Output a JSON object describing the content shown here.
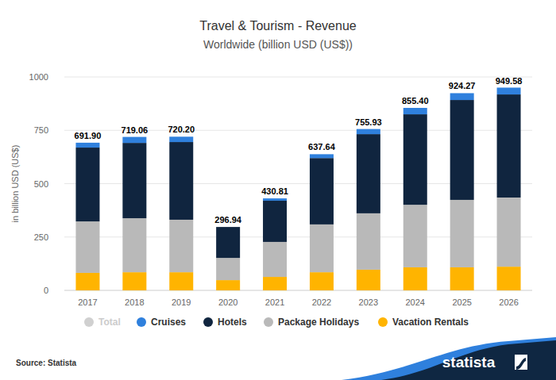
{
  "chart_data": {
    "type": "bar",
    "title": "Travel & Tourism - Revenue",
    "subtitle": "Worldwide (billion USD (US$))",
    "y_label": "in billion USD (US$)",
    "source": "Source: Statista",
    "logo": "statista",
    "categories": [
      "2017",
      "2018",
      "2019",
      "2020",
      "2021",
      "2022",
      "2023",
      "2024",
      "2025",
      "2026"
    ],
    "stacked": true,
    "grid": true,
    "legend": "bottom",
    "ylim": [
      0,
      1000
    ],
    "yticks": [
      0,
      250,
      500,
      750,
      1000
    ],
    "series": [
      {
        "name": "Total",
        "type": "label",
        "color": "#d0d0d0",
        "data_labels": true,
        "values": [
          691.9,
          719.06,
          720.2,
          296.94,
          430.81,
          637.64,
          755.93,
          855.4,
          924.27,
          949.58
        ],
        "value_labels": [
          "691.90",
          "719.06",
          "720.20",
          "296.94",
          "430.81",
          "637.64",
          "755.93",
          "855.40",
          "924.27",
          "949.58"
        ]
      },
      {
        "name": "Cruises",
        "color": "#2f80dd",
        "values": [
          22.9,
          28,
          25,
          0,
          11,
          18,
          24,
          30,
          32,
          32
        ]
      },
      {
        "name": "Hotels",
        "color": "#10253f",
        "values": [
          346,
          353,
          364,
          145,
          193,
          311,
          371,
          424,
          468,
          483
        ]
      },
      {
        "name": "Package Holidays",
        "color": "#b9b9b9",
        "values": [
          241,
          253,
          246,
          104,
          164,
          224,
          264,
          293,
          316,
          324
        ]
      },
      {
        "name": "Vacation Rentals",
        "color": "#ffb400",
        "values": [
          82,
          85,
          85,
          48,
          63,
          85,
          97,
          108,
          108,
          111
        ]
      }
    ]
  }
}
